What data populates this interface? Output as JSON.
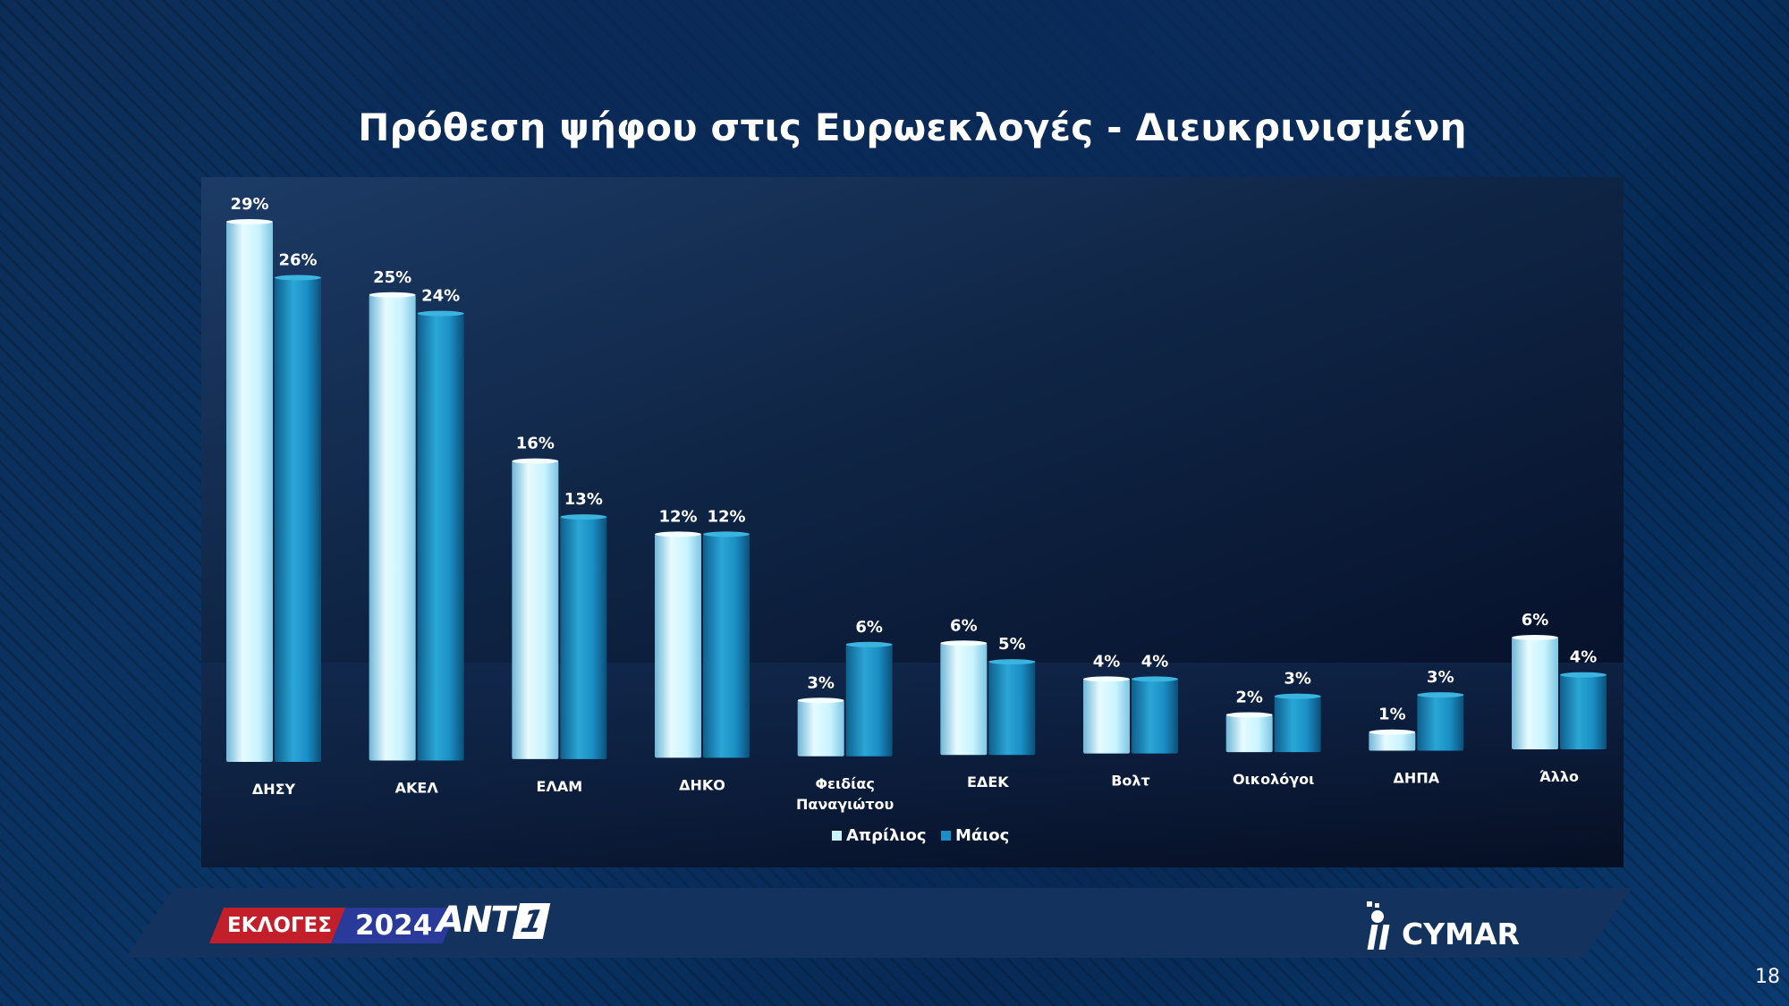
{
  "title": "Πρόθεση ψήφου στις Ευρωεκλογές - Διευκρινισμένη",
  "page_number": "18",
  "footer": {
    "badge_elections": "ΕΚΛΟΓΕΣ",
    "badge_year": "2024",
    "channel_logo_text": "ANT",
    "channel_logo_number": "1",
    "pollster_logo_text": "CYMAR"
  },
  "colors": {
    "april": "#c8f4ff",
    "may": "#1a8fc4"
  },
  "chart_data": {
    "type": "bar",
    "title": "Πρόθεση ψήφου στις Ευρωεκλογές - Διευκρινισμένη",
    "categories": [
      "ΔΗΣΥ",
      "ΑΚΕΛ",
      "ΕΛΑΜ",
      "ΔΗΚΟ",
      "Φειδίας Παναγιώτου",
      "ΕΔΕΚ",
      "Βολτ",
      "Οικολόγοι",
      "ΔΗΠΑ",
      "Άλλο"
    ],
    "category_lines": [
      [
        "ΔΗΣΥ"
      ],
      [
        "ΑΚΕΛ"
      ],
      [
        "ΕΛΑΜ"
      ],
      [
        "ΔΗΚΟ"
      ],
      [
        "Φειδίας",
        "Παναγιώτου"
      ],
      [
        "ΕΔΕΚ"
      ],
      [
        "Βολτ"
      ],
      [
        "Οικολόγοι"
      ],
      [
        "ΔΗΠΑ"
      ],
      [
        "Άλλο"
      ]
    ],
    "series": [
      {
        "name": "Απρίλιος",
        "values": [
          29,
          25,
          16,
          12,
          3,
          6,
          4,
          2,
          1,
          6
        ],
        "labels": [
          "29%",
          "25%",
          "16%",
          "12%",
          "3%",
          "6%",
          "4%",
          "2%",
          "1%",
          "6%"
        ]
      },
      {
        "name": "Μάιος",
        "values": [
          26,
          24,
          13,
          12,
          6,
          5,
          4,
          3,
          3,
          4
        ],
        "labels": [
          "26%",
          "24%",
          "13%",
          "12%",
          "6%",
          "5%",
          "4%",
          "3%",
          "3%",
          "4%"
        ]
      }
    ],
    "unit": "%",
    "ylim": [
      0,
      30
    ],
    "grid": false,
    "legend": "bottom-center"
  }
}
